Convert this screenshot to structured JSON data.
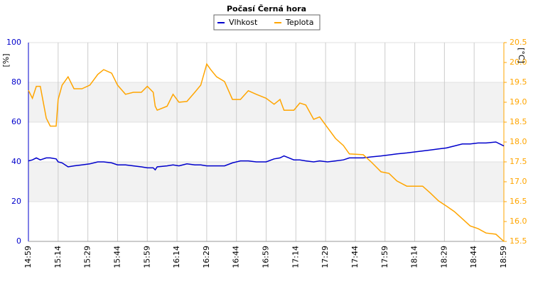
{
  "chart_data": {
    "type": "line",
    "title": "Počasí Černá hora",
    "ylabel": "[%]",
    "y2label": "[°C]",
    "x": [
      "14:59",
      "15:01",
      "15:03",
      "15:05",
      "15:08",
      "15:10",
      "15:13",
      "15:14",
      "15:16",
      "15:19",
      "15:22",
      "15:26",
      "15:30",
      "15:34",
      "15:37",
      "15:41",
      "15:44",
      "15:48",
      "15:52",
      "15:56",
      "15:59",
      "16:02",
      "16:03",
      "16:04",
      "16:09",
      "16:12",
      "16:15",
      "16:19",
      "16:23",
      "16:26",
      "16:29",
      "16:31",
      "16:34",
      "16:38",
      "16:42",
      "16:46",
      "16:50",
      "16:54",
      "16:59",
      "17:03",
      "17:06",
      "17:08",
      "17:13",
      "17:16",
      "17:19",
      "17:23",
      "17:26",
      "17:30",
      "17:34",
      "17:38",
      "17:41",
      "17:48",
      "17:52",
      "17:57",
      "18:01",
      "18:05",
      "18:10",
      "18:18",
      "18:22",
      "18:26",
      "18:30",
      "18:34",
      "18:38",
      "18:42",
      "18:46",
      "18:50",
      "18:55",
      "18:59"
    ],
    "series": [
      {
        "name": "Vlhkost",
        "color": "#0000cc",
        "axis": "y",
        "values": [
          40.5,
          41,
          42,
          41,
          42,
          42,
          41.5,
          40,
          39.5,
          37.5,
          38,
          38.5,
          39,
          40,
          40,
          39.5,
          38.5,
          38.5,
          38,
          37.5,
          37,
          37,
          36,
          37.5,
          38,
          38.5,
          38,
          39,
          38.5,
          38.5,
          38,
          38,
          38,
          38,
          39.5,
          40.5,
          40.5,
          40,
          40,
          41.5,
          42,
          43,
          41,
          41,
          40.5,
          40,
          40.5,
          40,
          40.5,
          41,
          42,
          42,
          42.5,
          43,
          43.5,
          44,
          44.5,
          45.5,
          46,
          46.5,
          47,
          48,
          49,
          49,
          49.5,
          49.5,
          50,
          48
        ]
      },
      {
        "name": "Teplota",
        "color": "#ffa500",
        "axis": "y2",
        "values": [
          19.3,
          19.1,
          19.4,
          19.4,
          18.6,
          18.4,
          18.4,
          19.07,
          19.43,
          19.64,
          19.34,
          19.34,
          19.43,
          19.7,
          19.82,
          19.73,
          19.43,
          19.2,
          19.25,
          19.25,
          19.4,
          19.25,
          18.9,
          18.8,
          18.9,
          19.2,
          19.0,
          19.02,
          19.25,
          19.43,
          19.96,
          19.82,
          19.64,
          19.52,
          19.07,
          19.07,
          19.29,
          19.2,
          19.1,
          18.95,
          19.07,
          18.8,
          18.8,
          18.98,
          18.93,
          18.57,
          18.63,
          18.36,
          18.09,
          17.91,
          17.7,
          17.68,
          17.5,
          17.25,
          17.21,
          17.02,
          16.89,
          16.89,
          16.71,
          16.52,
          16.39,
          16.25,
          16.07,
          15.89,
          15.82,
          15.71,
          15.68,
          15.5
        ]
      }
    ],
    "xlim": [
      "14:59",
      "18:59"
    ],
    "xticks": [
      "14:59",
      "15:14",
      "15:29",
      "15:44",
      "15:59",
      "16:14",
      "16:29",
      "16:44",
      "16:59",
      "17:14",
      "17:29",
      "17:44",
      "17:59",
      "18:14",
      "18:29",
      "18:44",
      "18:59"
    ],
    "ylim": [
      0,
      100
    ],
    "yticks": [
      0,
      20,
      40,
      60,
      80,
      100
    ],
    "y2lim": [
      15.5,
      20.5
    ],
    "y2ticks": [
      15.5,
      {
        "value": 16,
        "label": "16.0"
      },
      16.5,
      {
        "value": 17,
        "label": "17.0"
      },
      17.5,
      {
        "value": 18,
        "label": "18.0"
      },
      18.5,
      {
        "value": 19,
        "label": "19.0"
      },
      19.5,
      {
        "value": 20,
        "label": "20.0"
      },
      20.5
    ],
    "grid": true,
    "legend": "top"
  }
}
